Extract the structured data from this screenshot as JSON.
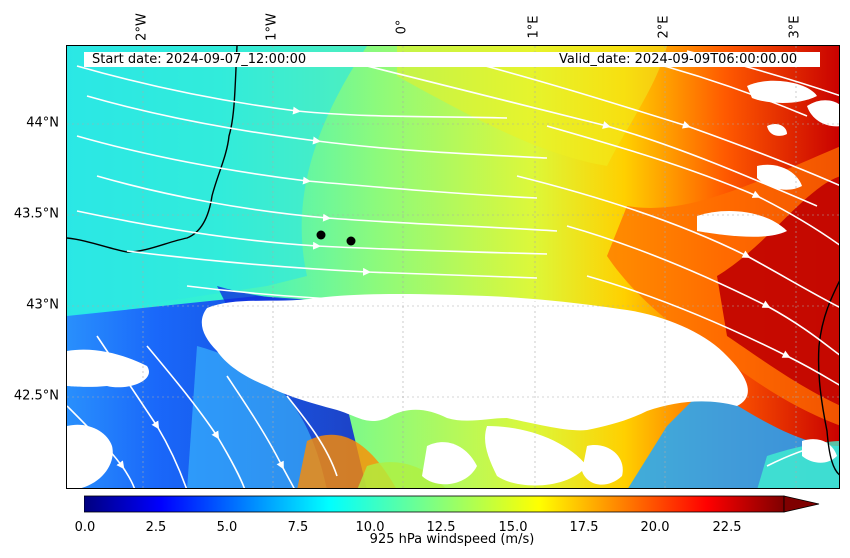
{
  "header": {
    "start_date": "Start date: 2024-09-07_12:00:00",
    "valid_date": "Valid_date: 2024-09-09T06:00:00.00"
  },
  "axes": {
    "lon_labels": [
      "2°W",
      "1°W",
      "0°",
      "1°E",
      "2°E",
      "3°E"
    ],
    "lat_labels": [
      "44°N",
      "43.5°N",
      "43°N",
      "42.5°N"
    ]
  },
  "map": {
    "projection": "lat-lon",
    "lon_range": [
      -2.55,
      3.25
    ],
    "lat_range": [
      42.0,
      44.45
    ],
    "gridlines": "dotted",
    "fill": "925 hPa windspeed",
    "overlay": "white streamlines (wind direction)",
    "masked_region": "white (terrain above 925 hPa)",
    "markers": [
      {
        "name": "point-1",
        "color": "#000000"
      },
      {
        "name": "point-2",
        "color": "#000000"
      }
    ]
  },
  "colorbar": {
    "label": "925 hPa windspeed (m/s)",
    "ticks": [
      "0.0",
      "2.5",
      "5.0",
      "7.5",
      "10.0",
      "12.5",
      "15.0",
      "17.5",
      "20.0",
      "22.5"
    ],
    "min": 0,
    "max": 25,
    "extend": "max",
    "colormap": "jet"
  }
}
